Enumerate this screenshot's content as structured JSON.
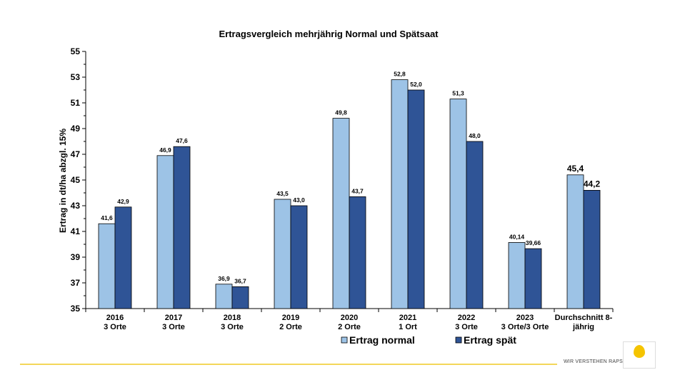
{
  "chart_data": {
    "type": "bar",
    "title": "Ertragsvergleich mehrjährig Normal und Spätsaat",
    "ylabel": "Ertrag in dt/ha abzgl. 15%",
    "xlabel": "",
    "ylim": [
      35,
      55
    ],
    "yticks": [
      "35",
      "37",
      "39",
      "41",
      "43",
      "45",
      "47",
      "49",
      "51",
      "53",
      "55"
    ],
    "categories": [
      [
        "2016",
        "3 Orte"
      ],
      [
        "2017",
        "3 Orte"
      ],
      [
        "2018",
        "3 Orte"
      ],
      [
        "2019",
        "2 Orte"
      ],
      [
        "2020",
        "2 Orte"
      ],
      [
        "2021",
        "1 Ort"
      ],
      [
        "2022",
        "3 Orte"
      ],
      [
        "2023",
        "3 Orte/3 Orte"
      ],
      [
        "Durchschnitt 8-",
        "jährig"
      ]
    ],
    "series": [
      {
        "name": "Ertrag normal",
        "color": "#9dc3e6",
        "values": [
          41.6,
          46.9,
          36.9,
          43.5,
          49.8,
          52.8,
          51.3,
          40.14,
          45.4
        ],
        "labels": [
          "41,6",
          "46,9",
          "36,9",
          "43,5",
          "49,8",
          "52,8",
          "51,3",
          "40,14",
          "45,4"
        ]
      },
      {
        "name": "Ertrag spät",
        "color": "#2f5496",
        "values": [
          42.9,
          47.6,
          36.7,
          43.0,
          43.7,
          52.0,
          48.0,
          39.66,
          44.2
        ],
        "labels": [
          "42,9",
          "47,6",
          "36,7",
          "43,0",
          "43,7",
          "52,0",
          "48,0",
          "39,66",
          "44,2"
        ]
      }
    ],
    "grid": false,
    "legend_position": "bottom"
  },
  "footer": {
    "brand": "WIR VERSTEHEN RAPS",
    "accent_color": "#f3d75a"
  }
}
